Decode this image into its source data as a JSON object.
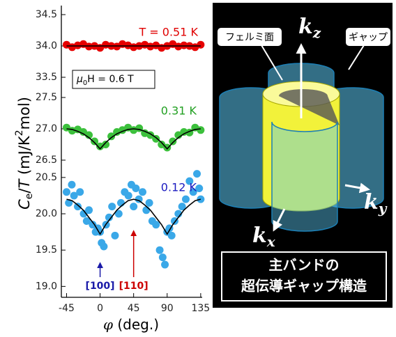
{
  "chart_data": [
    {
      "type": "scatter",
      "label": "T = 0.51 K",
      "label_color": "#e00000",
      "field_parts": [
        "μ",
        "0",
        "H = 0.6 T"
      ],
      "ylim": [
        33.4,
        34.6
      ],
      "yticks": [
        33.5,
        34.0,
        34.5
      ],
      "series": [
        {
          "style": "markers",
          "color": "#e60000",
          "x": [
            -45,
            -37.5,
            -30,
            -22.5,
            -15,
            -7.5,
            0,
            7.5,
            15,
            22.5,
            30,
            37.5,
            45,
            52.5,
            60,
            67.5,
            75,
            82.5,
            90,
            97.5,
            105,
            112.5,
            120,
            127.5,
            135
          ],
          "values": [
            34.02,
            33.98,
            34.01,
            34.03,
            33.99,
            34.0,
            33.97,
            34.02,
            34.0,
            33.99,
            34.03,
            34.01,
            33.98,
            34.0,
            34.02,
            33.99,
            34.01,
            33.97,
            34.0,
            34.03,
            33.99,
            34.01,
            34.0,
            33.98,
            34.02
          ]
        },
        {
          "style": "line",
          "color": "#000000",
          "x": [
            -45,
            135
          ],
          "values": [
            34.0,
            34.0
          ]
        }
      ]
    },
    {
      "type": "scatter",
      "label": "0.31 K",
      "label_color": "#22a022",
      "ylabel_parts": [
        "C",
        "e",
        "/",
        "T",
        " (mJ/K",
        "2",
        "mol)"
      ],
      "ylim": [
        26.3,
        27.6
      ],
      "yticks": [
        26.5,
        27.0,
        27.5
      ],
      "series": [
        {
          "style": "markers",
          "color": "#3cc03c",
          "x": [
            -45,
            -37.5,
            -30,
            -22.5,
            -15,
            -7.5,
            0,
            7.5,
            15,
            22.5,
            30,
            37.5,
            45,
            52.5,
            60,
            67.5,
            75,
            82.5,
            90,
            97.5,
            105,
            112.5,
            120,
            127.5,
            135
          ],
          "values": [
            27.02,
            26.97,
            26.99,
            26.95,
            26.9,
            26.8,
            26.72,
            26.75,
            26.88,
            26.95,
            26.98,
            27.02,
            26.98,
            27.01,
            26.93,
            26.9,
            26.84,
            26.75,
            26.7,
            26.8,
            26.9,
            26.95,
            26.94,
            27.02,
            26.98
          ]
        },
        {
          "style": "line",
          "color": "#000000",
          "x": [
            -45,
            -37.5,
            -30,
            -22.5,
            -15,
            -7.5,
            0,
            7.5,
            15,
            22.5,
            30,
            37.5,
            45,
            52.5,
            60,
            67.5,
            75,
            82.5,
            90,
            97.5,
            105,
            112.5,
            120,
            127.5,
            135
          ],
          "values": [
            27.0,
            26.99,
            26.96,
            26.92,
            26.86,
            26.78,
            26.68,
            26.78,
            26.86,
            26.92,
            26.96,
            26.99,
            27.0,
            26.99,
            26.96,
            26.92,
            26.86,
            26.78,
            26.68,
            26.78,
            26.86,
            26.92,
            26.96,
            26.99,
            27.0
          ]
        }
      ]
    },
    {
      "type": "scatter",
      "label": "0.12 K",
      "label_color": "#1a1ac0",
      "xlabel_parts": [
        "φ",
        " (deg.)"
      ],
      "xlim": [
        -52,
        137
      ],
      "xticks": [
        -45,
        0,
        45,
        90,
        135
      ],
      "ylim": [
        18.85,
        20.7
      ],
      "yticks": [
        19.0,
        19.5,
        20.0,
        20.5
      ],
      "annotations": [
        {
          "text": "[100]",
          "x": 0,
          "color": "#1a1aa8"
        },
        {
          "text": "[110]",
          "x": 45,
          "color": "#cc0000"
        }
      ],
      "series": [
        {
          "style": "markers",
          "color": "#3aa8e8",
          "x": [
            -45,
            -42,
            -38,
            -35,
            -30,
            -27,
            -22,
            -18,
            -15,
            -10,
            -6,
            -3,
            0,
            2,
            5,
            8,
            12,
            16,
            20,
            25,
            28,
            33,
            38,
            42,
            45,
            48,
            52,
            57,
            62,
            66,
            70,
            75,
            80,
            84,
            87,
            90,
            93,
            96,
            100,
            105,
            110,
            115,
            120,
            125,
            130,
            133,
            135
          ],
          "values": [
            20.3,
            20.15,
            20.4,
            20.25,
            20.1,
            20.3,
            20.0,
            19.9,
            20.05,
            19.85,
            19.75,
            19.8,
            19.75,
            19.6,
            19.55,
            19.85,
            19.95,
            20.1,
            19.7,
            20.0,
            20.15,
            20.3,
            20.25,
            20.4,
            20.1,
            20.35,
            20.2,
            20.3,
            20.05,
            20.15,
            19.9,
            19.85,
            19.5,
            19.4,
            19.3,
            19.75,
            19.8,
            19.7,
            19.9,
            20.0,
            20.1,
            20.2,
            20.45,
            20.3,
            20.55,
            20.35,
            20.2
          ]
        },
        {
          "style": "line",
          "color": "#000000",
          "x": [
            -45,
            -37.5,
            -30,
            -22.5,
            -15,
            -7.5,
            0,
            7.5,
            15,
            22.5,
            30,
            37.5,
            45,
            52.5,
            60,
            67.5,
            75,
            82.5,
            90,
            97.5,
            105,
            112.5,
            120,
            127.5,
            135
          ],
          "values": [
            20.2,
            20.18,
            20.12,
            20.05,
            19.95,
            19.85,
            19.72,
            19.85,
            19.95,
            20.05,
            20.12,
            20.18,
            20.2,
            20.18,
            20.12,
            20.05,
            19.95,
            19.85,
            19.72,
            19.85,
            19.95,
            20.05,
            20.12,
            20.18,
            20.2
          ]
        }
      ]
    }
  ],
  "diagram": {
    "fermi_label": "フェルミ面",
    "gap_label": "ギャップ",
    "kz": [
      "k",
      "z"
    ],
    "ky": [
      "k",
      "y"
    ],
    "kx": [
      "k",
      "x"
    ],
    "caption": [
      "主バンドの",
      "超伝導ギャップ構造"
    ]
  }
}
